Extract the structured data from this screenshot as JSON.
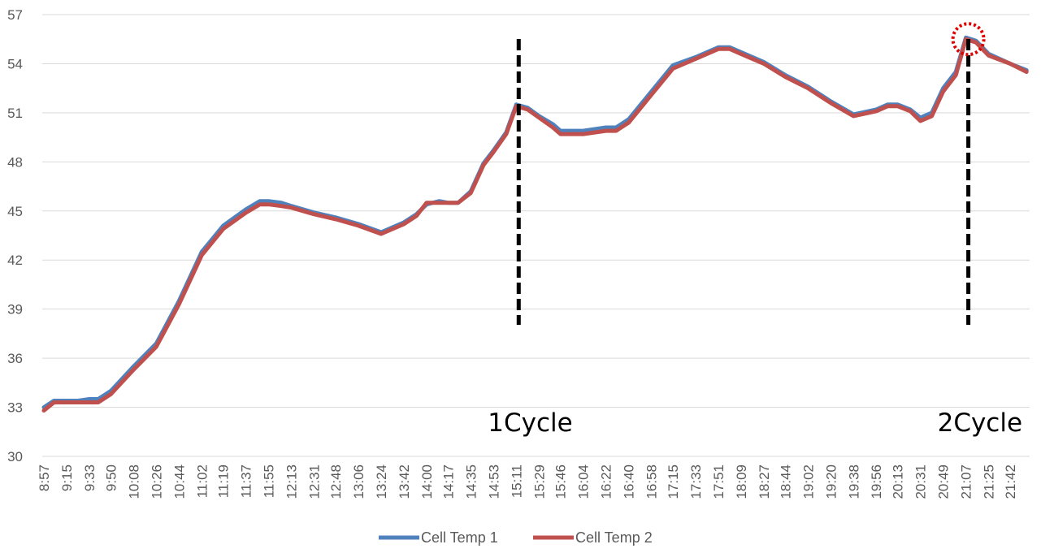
{
  "chart_data": {
    "type": "line",
    "title": "",
    "xlabel": "",
    "ylabel": "",
    "ylim": [
      30,
      57
    ],
    "yticks": [
      30,
      33,
      36,
      39,
      42,
      45,
      48,
      51,
      54,
      57
    ],
    "grid": true,
    "legend_position": "bottom",
    "x_tick_labels": [
      "8:57",
      "9:15",
      "9:33",
      "9:50",
      "10:08",
      "10:26",
      "10:44",
      "11:02",
      "11:19",
      "11:37",
      "11:55",
      "12:13",
      "12:31",
      "12:48",
      "13:06",
      "13:24",
      "13:42",
      "14:00",
      "14:17",
      "14:35",
      "14:53",
      "15:11",
      "15:29",
      "15:46",
      "16:04",
      "16:22",
      "16:40",
      "16:58",
      "17:15",
      "17:33",
      "17:51",
      "18:09",
      "18:27",
      "18:44",
      "19:02",
      "19:20",
      "19:38",
      "19:56",
      "20:13",
      "20:31",
      "20:49",
      "21:07",
      "21:25",
      "21:42"
    ],
    "series": [
      {
        "name": "Cell Temp 1",
        "color": "#4f81bd",
        "x": [
          "8:57",
          "9:05",
          "9:15",
          "9:24",
          "9:33",
          "9:40",
          "9:50",
          "10:08",
          "10:26",
          "10:44",
          "11:02",
          "11:19",
          "11:37",
          "11:48",
          "11:55",
          "12:05",
          "12:13",
          "12:31",
          "12:48",
          "13:06",
          "13:24",
          "13:42",
          "13:52",
          "14:00",
          "14:10",
          "14:17",
          "14:25",
          "14:35",
          "14:45",
          "14:53",
          "15:03",
          "15:11",
          "15:20",
          "15:29",
          "15:40",
          "15:46",
          "16:04",
          "16:22",
          "16:30",
          "16:40",
          "16:58",
          "17:15",
          "17:33",
          "17:51",
          "18:00",
          "18:09",
          "18:27",
          "18:44",
          "19:02",
          "19:20",
          "19:38",
          "19:56",
          "20:05",
          "20:13",
          "20:23",
          "20:31",
          "20:40",
          "20:49",
          "20:59",
          "21:07",
          "21:15",
          "21:25",
          "21:42",
          "21:55"
        ],
        "values": [
          33.0,
          33.4,
          33.4,
          33.4,
          33.5,
          33.5,
          34.0,
          35.5,
          36.9,
          39.5,
          42.5,
          44.1,
          45.1,
          45.6,
          45.6,
          45.5,
          45.3,
          44.9,
          44.6,
          44.2,
          43.7,
          44.3,
          44.8,
          45.4,
          45.6,
          45.5,
          45.5,
          46.2,
          47.9,
          48.7,
          49.8,
          51.5,
          51.3,
          50.8,
          50.3,
          49.9,
          49.9,
          50.1,
          50.1,
          50.6,
          52.3,
          53.9,
          54.4,
          55.0,
          55.0,
          54.7,
          54.1,
          53.3,
          52.6,
          51.7,
          50.9,
          51.2,
          51.5,
          51.5,
          51.2,
          50.7,
          51.0,
          52.5,
          53.5,
          55.6,
          55.4,
          54.6,
          54.0,
          53.6
        ]
      },
      {
        "name": "Cell Temp 2",
        "color": "#c0504d",
        "x": [
          "8:57",
          "9:05",
          "9:15",
          "9:24",
          "9:33",
          "9:40",
          "9:50",
          "10:08",
          "10:26",
          "10:44",
          "11:02",
          "11:19",
          "11:37",
          "11:48",
          "11:55",
          "12:05",
          "12:13",
          "12:31",
          "12:48",
          "13:06",
          "13:24",
          "13:42",
          "13:52",
          "14:00",
          "14:10",
          "14:17",
          "14:25",
          "14:35",
          "14:45",
          "14:53",
          "15:03",
          "15:11",
          "15:20",
          "15:29",
          "15:40",
          "15:46",
          "16:04",
          "16:22",
          "16:30",
          "16:40",
          "16:58",
          "17:15",
          "17:33",
          "17:51",
          "18:00",
          "18:09",
          "18:27",
          "18:44",
          "19:02",
          "19:20",
          "19:38",
          "19:56",
          "20:05",
          "20:13",
          "20:23",
          "20:31",
          "20:40",
          "20:49",
          "20:59",
          "21:07",
          "21:15",
          "21:25",
          "21:42",
          "21:55"
        ],
        "values": [
          32.8,
          33.3,
          33.3,
          33.3,
          33.3,
          33.3,
          33.8,
          35.3,
          36.7,
          39.3,
          42.3,
          43.9,
          44.9,
          45.4,
          45.4,
          45.3,
          45.2,
          44.8,
          44.5,
          44.1,
          43.6,
          44.2,
          44.7,
          45.5,
          45.5,
          45.5,
          45.5,
          46.1,
          47.8,
          48.6,
          49.7,
          51.4,
          51.2,
          50.7,
          50.1,
          49.7,
          49.7,
          49.9,
          49.9,
          50.4,
          52.1,
          53.7,
          54.3,
          54.9,
          54.9,
          54.6,
          54.0,
          53.2,
          52.5,
          51.6,
          50.8,
          51.1,
          51.4,
          51.4,
          51.1,
          50.5,
          50.8,
          52.3,
          53.3,
          55.5,
          55.3,
          54.5,
          54.0,
          53.5
        ]
      }
    ],
    "annotations": [
      {
        "text": "1Cycle",
        "x": "15:11",
        "style": "dashed vertical line"
      },
      {
        "text": "2Cycle",
        "x": "21:07",
        "style": "dashed vertical line"
      }
    ],
    "highlight": {
      "shape": "dotted circle",
      "color": "#e00000",
      "x": "21:07",
      "y": 55.6
    }
  }
}
